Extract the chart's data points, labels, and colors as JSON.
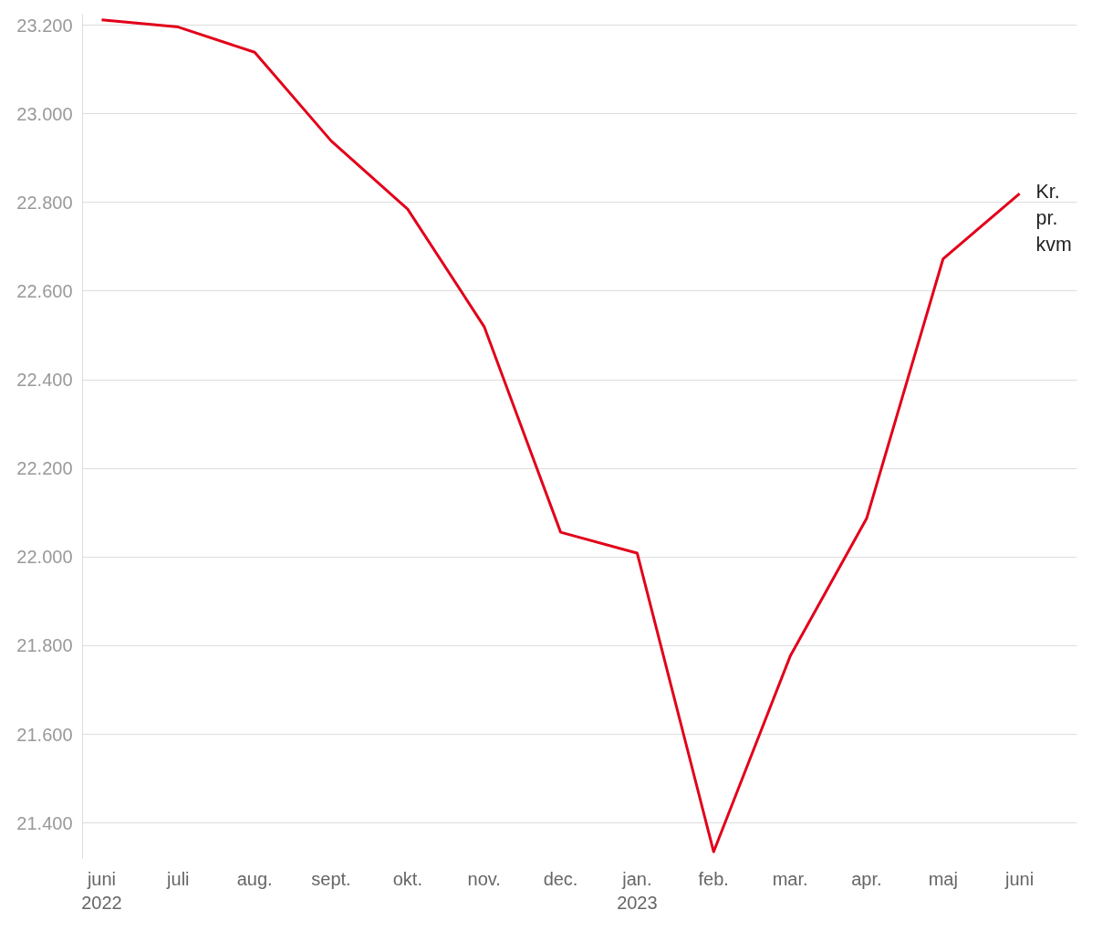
{
  "chart_data": {
    "type": "line",
    "categories": [
      "juni\n2022",
      "juli",
      "aug.",
      "sept.",
      "okt.",
      "nov.",
      "dec.",
      "jan.\n2023",
      "feb.",
      "mar.",
      "apr.",
      "maj",
      "juni"
    ],
    "series": [
      {
        "name": "Kr. pr. kvm",
        "color": "#e2001a",
        "values": [
          23212,
          23196,
          23139,
          22939,
          22785,
          22520,
          22056,
          22009,
          21335,
          21776,
          22087,
          22673,
          22820
        ]
      }
    ],
    "ylim": [
      21320,
      23225
    ],
    "yticks": [
      {
        "value": 21400,
        "label": "21.400"
      },
      {
        "value": 21600,
        "label": "21.600"
      },
      {
        "value": 21800,
        "label": "21.800"
      },
      {
        "value": 22000,
        "label": "22.000"
      },
      {
        "value": 22200,
        "label": "22.200"
      },
      {
        "value": 22400,
        "label": "22.400"
      },
      {
        "value": 22600,
        "label": "22.600"
      },
      {
        "value": 22800,
        "label": "22.800"
      },
      {
        "value": 23000,
        "label": "23.000"
      },
      {
        "value": 23200,
        "label": "23.200"
      }
    ],
    "grid": "y",
    "legend": false,
    "marker": "none",
    "line_style": "solid"
  }
}
